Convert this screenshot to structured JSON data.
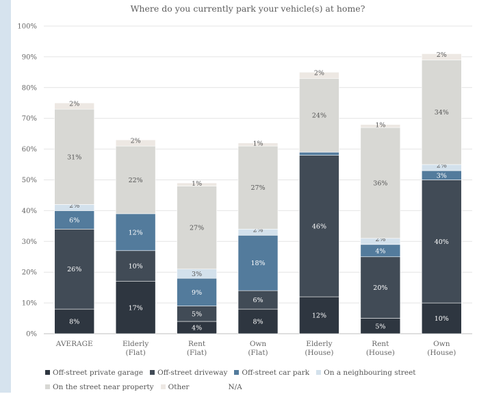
{
  "chart_data": {
    "type": "bar",
    "stacked": true,
    "title": "Where do you currently park your vehicle(s) at home?",
    "xlabel": "",
    "ylabel": "",
    "ylim": [
      0,
      100
    ],
    "yticks": [
      "0%",
      "10%",
      "20%",
      "30%",
      "40%",
      "50%",
      "60%",
      "70%",
      "80%",
      "90%",
      "100%"
    ],
    "grid": true,
    "legend_position": "bottom",
    "categories": [
      [
        "AVERAGE"
      ],
      [
        "Elderly",
        "(Flat)"
      ],
      [
        "Rent",
        "(Flat)"
      ],
      [
        "Own",
        "(Flat)"
      ],
      [
        "Elderly",
        "(House)"
      ],
      [
        "Rent",
        "(House)"
      ],
      [
        "Own",
        "(House)"
      ]
    ],
    "series": [
      {
        "name": "Off-street private garage",
        "color": "#2e3640",
        "label_color": "#ffffff",
        "values": [
          8,
          17,
          4,
          8,
          12,
          5,
          10
        ],
        "labels": [
          "8%",
          "17%",
          "4%",
          "8%",
          "12%",
          "5%",
          "10%"
        ]
      },
      {
        "name": "Off-street driveway",
        "color": "#414b56",
        "label_color": "#ffffff",
        "values": [
          26,
          10,
          5,
          6,
          46,
          20,
          40
        ],
        "labels": [
          "26%",
          "10%",
          "5%",
          "6%",
          "46%",
          "20%",
          "40%"
        ]
      },
      {
        "name": "Off-street car park",
        "color": "#537b9c",
        "label_color": "#ffffff",
        "values": [
          6,
          12,
          9,
          18,
          1,
          4,
          3
        ],
        "labels": [
          "6%",
          "12%",
          "9%",
          "18%",
          "",
          "4%",
          "3%"
        ]
      },
      {
        "name": "On a neighbouring street",
        "color": "#d3e1ec",
        "label_color": "#555555",
        "values": [
          2,
          0,
          3,
          2,
          0,
          2,
          2
        ],
        "labels": [
          "2%",
          "",
          "3%",
          "2%",
          "",
          "2%",
          "2%"
        ]
      },
      {
        "name": "On the street near property",
        "color": "#d8d8d4",
        "label_color": "#555555",
        "values": [
          31,
          22,
          27,
          27,
          24,
          36,
          34
        ],
        "labels": [
          "31%",
          "22%",
          "27%",
          "27%",
          "24%",
          "36%",
          "34%"
        ]
      },
      {
        "name": "Other",
        "color": "#ede8e3",
        "label_color": "#555555",
        "values": [
          2,
          2,
          1,
          1,
          2,
          1,
          2
        ],
        "labels": [
          "2%",
          "2%",
          "1%",
          "1%",
          "2%",
          "1%",
          "2%"
        ]
      },
      {
        "name": "N/A",
        "color": "#ffffff",
        "label_color": "#555555",
        "values": [
          0,
          0,
          0,
          0,
          0,
          0,
          0
        ],
        "labels": [
          "",
          "",
          "",
          "",
          "",
          "",
          ""
        ]
      }
    ]
  }
}
